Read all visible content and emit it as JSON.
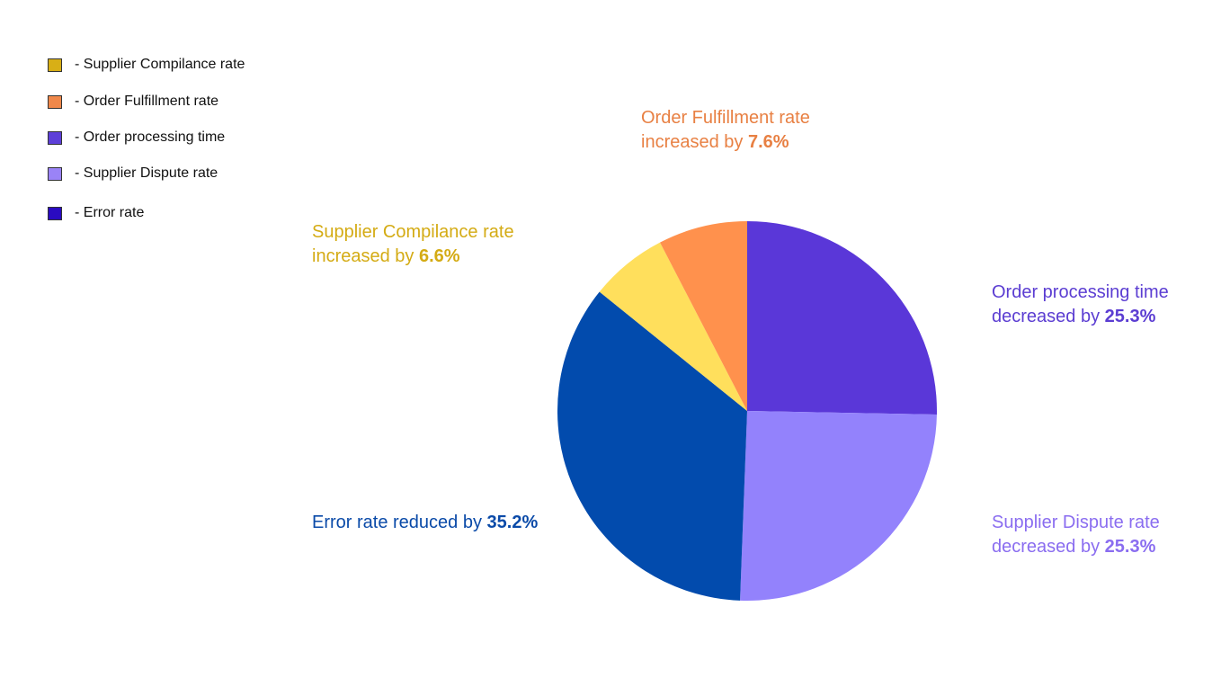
{
  "legend": {
    "items": [
      {
        "label": "- Supplier Compilance rate",
        "swatch": "#d8af16"
      },
      {
        "label": "- Order Fulfillment rate",
        "swatch": "#f0884a"
      },
      {
        "label": "- Order processing time",
        "swatch": "#5d3fd8"
      },
      {
        "label": "- Supplier Dispute rate",
        "swatch": "#9a83f7"
      },
      {
        "label": "- Error rate",
        "swatch": "#2a0bc1"
      }
    ]
  },
  "callouts": {
    "fulfillment": {
      "line1": "Order Fulfillment rate",
      "prefix": "increased by ",
      "value": "7.6%",
      "color": "#e88043"
    },
    "compliance": {
      "line1": "Supplier Compilance rate",
      "prefix": "increased by ",
      "value": "6.6%",
      "color": "#d4ab14"
    },
    "processing": {
      "line1": "Order processing time",
      "prefix": "decreased by ",
      "value": "25.3%",
      "color": "#5b3dd2"
    },
    "dispute": {
      "line1": "Supplier Dispute rate",
      "prefix": "decreased by ",
      "value": "25.3%",
      "color": "#8a6df0"
    },
    "error": {
      "line1": "",
      "prefix": "Error rate reduced by ",
      "value": "35.2%",
      "color": "#0a4aa8"
    }
  },
  "chart_data": {
    "type": "pie",
    "slices": [
      {
        "label": "Order processing time",
        "value": 25.3,
        "color": "#5a37d8"
      },
      {
        "label": "Supplier Dispute rate",
        "value": 25.3,
        "color": "#9382fc"
      },
      {
        "label": "Error rate",
        "value": 35.2,
        "color": "#024bad"
      },
      {
        "label": "Supplier Compilance rate",
        "value": 6.6,
        "color": "#ffdf5c"
      },
      {
        "label": "Order Fulfillment rate",
        "value": 7.6,
        "color": "#ff914d"
      }
    ],
    "start_angle_deg": 0,
    "direction": "clockwise",
    "legend_position": "top-left"
  }
}
